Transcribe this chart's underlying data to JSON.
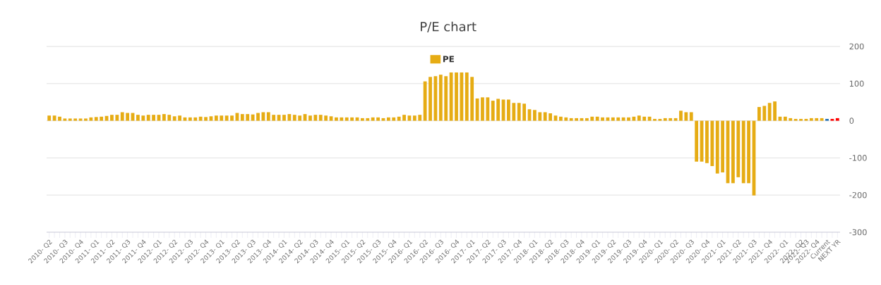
{
  "chart_data": {
    "type": "bar",
    "title": "P/E chart",
    "categories": [
      "2010- Q2",
      null,
      null,
      "2010- Q3",
      null,
      null,
      "2010- Q4",
      null,
      null,
      "2011- Q1",
      null,
      null,
      "2011- Q2",
      null,
      null,
      "2011- Q3",
      null,
      null,
      "2011- Q4",
      null,
      null,
      "2012- Q1",
      null,
      null,
      "2012- Q2",
      null,
      null,
      "2012- Q3",
      null,
      null,
      "2012- Q4",
      null,
      null,
      "2013- Q1",
      null,
      null,
      "2013- Q2",
      null,
      null,
      "2013- Q3",
      null,
      null,
      "2013- Q4",
      null,
      null,
      "2014- Q1",
      null,
      null,
      "2014- Q2",
      null,
      null,
      "2014- Q3",
      null,
      null,
      "2014- Q4",
      null,
      null,
      "2015- Q1",
      null,
      null,
      "2015- Q2",
      null,
      null,
      "2015- Q3",
      null,
      null,
      "2015- Q4",
      null,
      null,
      "2016- Q1",
      null,
      null,
      "2016- Q2",
      null,
      null,
      "2016- Q3",
      null,
      null,
      "2016- Q4",
      null,
      null,
      "2017- Q1",
      null,
      null,
      "2017- Q2",
      null,
      null,
      "2017- Q3",
      null,
      null,
      "2017- Q4",
      null,
      null,
      "2018- Q1",
      null,
      null,
      "2018- Q2",
      null,
      null,
      "2018- Q3",
      null,
      null,
      "2018- Q4",
      null,
      null,
      "2019- Q1",
      null,
      null,
      "2019- Q2",
      null,
      null,
      "2019- Q3",
      null,
      null,
      "2019- Q4",
      null,
      null,
      "2020- Q1",
      null,
      null,
      "2020- Q2",
      null,
      null,
      "2020- Q3",
      null,
      null,
      "2020- Q4",
      null,
      null,
      "2021- Q1",
      null,
      null,
      "2021- Q2",
      null,
      null,
      "2021- Q3",
      null,
      null,
      "2021- Q4",
      null,
      null,
      "2022- Q1",
      null,
      null,
      "2022- Q2",
      "2022- Q3",
      null,
      "2022- Q4",
      null,
      "Current",
      null,
      "NEXT YR"
    ],
    "series": [
      {
        "name": "PE",
        "values": [
          14,
          14,
          11,
          6,
          6,
          6,
          6,
          6,
          9,
          10,
          11,
          13,
          16,
          16,
          23,
          21,
          21,
          16,
          14,
          16,
          16,
          16,
          18,
          16,
          12,
          14,
          9,
          9,
          9,
          11,
          10,
          12,
          14,
          14,
          14,
          14,
          21,
          18,
          18,
          17,
          21,
          23,
          23,
          16,
          16,
          16,
          18,
          16,
          14,
          18,
          14,
          16,
          16,
          14,
          12,
          9,
          9,
          9,
          9,
          9,
          7,
          7,
          9,
          9,
          7,
          9,
          9,
          11,
          16,
          14,
          14,
          16,
          106,
          118,
          120,
          124,
          120,
          130,
          130,
          130,
          130,
          118,
          60,
          63,
          63,
          54,
          59,
          57,
          57,
          48,
          48,
          46,
          31,
          29,
          23,
          23,
          20,
          14,
          11,
          9,
          7,
          7,
          7,
          7,
          11,
          11,
          9,
          9,
          9,
          9,
          9,
          9,
          11,
          14,
          11,
          11,
          5,
          5,
          7,
          7,
          7,
          27,
          23,
          23,
          -110,
          -110,
          -114,
          -122,
          -142,
          -139,
          -168,
          -168,
          -152,
          -168,
          -168,
          -201,
          37,
          40,
          48,
          52,
          11,
          11,
          7,
          5,
          5,
          5,
          7,
          7,
          7,
          5,
          5,
          7
        ],
        "colors": [
          "#e6ac14",
          "#e6ac14",
          "#e6ac14",
          "#e6ac14",
          "#e6ac14",
          "#e6ac14",
          "#e6ac14",
          "#e6ac14",
          "#e6ac14",
          "#e6ac14",
          "#e6ac14",
          "#e6ac14",
          "#e6ac14",
          "#e6ac14",
          "#e6ac14",
          "#e6ac14",
          "#e6ac14",
          "#e6ac14",
          "#e6ac14",
          "#e6ac14",
          "#e6ac14",
          "#e6ac14",
          "#e6ac14",
          "#e6ac14",
          "#e6ac14",
          "#e6ac14",
          "#e6ac14",
          "#e6ac14",
          "#e6ac14",
          "#e6ac14",
          "#e6ac14",
          "#e6ac14",
          "#e6ac14",
          "#e6ac14",
          "#e6ac14",
          "#e6ac14",
          "#e6ac14",
          "#e6ac14",
          "#e6ac14",
          "#e6ac14",
          "#e6ac14",
          "#e6ac14",
          "#e6ac14",
          "#e6ac14",
          "#e6ac14",
          "#e6ac14",
          "#e6ac14",
          "#e6ac14",
          "#e6ac14",
          "#e6ac14",
          "#e6ac14",
          "#e6ac14",
          "#e6ac14",
          "#e6ac14",
          "#e6ac14",
          "#e6ac14",
          "#e6ac14",
          "#e6ac14",
          "#e6ac14",
          "#e6ac14",
          "#e6ac14",
          "#e6ac14",
          "#e6ac14",
          "#e6ac14",
          "#e6ac14",
          "#e6ac14",
          "#e6ac14",
          "#e6ac14",
          "#e6ac14",
          "#e6ac14",
          "#e6ac14",
          "#e6ac14",
          "#e6ac14",
          "#e6ac14",
          "#e6ac14",
          "#e6ac14",
          "#e6ac14",
          "#e6ac14",
          "#e6ac14",
          "#e6ac14",
          "#e6ac14",
          "#e6ac14",
          "#e6ac14",
          "#e6ac14",
          "#e6ac14",
          "#e6ac14",
          "#e6ac14",
          "#e6ac14",
          "#e6ac14",
          "#e6ac14",
          "#e6ac14",
          "#e6ac14",
          "#e6ac14",
          "#e6ac14",
          "#e6ac14",
          "#e6ac14",
          "#e6ac14",
          "#e6ac14",
          "#e6ac14",
          "#e6ac14",
          "#e6ac14",
          "#e6ac14",
          "#e6ac14",
          "#e6ac14",
          "#e6ac14",
          "#e6ac14",
          "#e6ac14",
          "#e6ac14",
          "#e6ac14",
          "#e6ac14",
          "#e6ac14",
          "#e6ac14",
          "#e6ac14",
          "#e6ac14",
          "#e6ac14",
          "#e6ac14",
          "#e6ac14",
          "#e6ac14",
          "#e6ac14",
          "#e6ac14",
          "#e6ac14",
          "#e6ac14",
          "#e6ac14",
          "#e6ac14",
          "#e6ac14",
          "#e6ac14",
          "#e6ac14",
          "#e6ac14",
          "#e6ac14",
          "#e6ac14",
          "#e6ac14",
          "#e6ac14",
          "#e6ac14",
          "#e6ac14",
          "#e6ac14",
          "#e6ac14",
          "#e6ac14",
          "#e6ac14",
          "#e6ac14",
          "#e6ac14",
          "#e6ac14",
          "#e6ac14",
          "#e6ac14",
          "#e6ac14",
          "#e6ac14",
          "#e6ac14",
          "#e6ac14",
          "#e6ac14",
          "#e6ac14",
          "#1f6fb4",
          "#ff0000",
          "#ff0000"
        ]
      }
    ],
    "ylim": [
      -300,
      200
    ],
    "yticks": [
      -300,
      -200,
      -100,
      0,
      100,
      200
    ],
    "grid": "y",
    "legend": "top"
  }
}
